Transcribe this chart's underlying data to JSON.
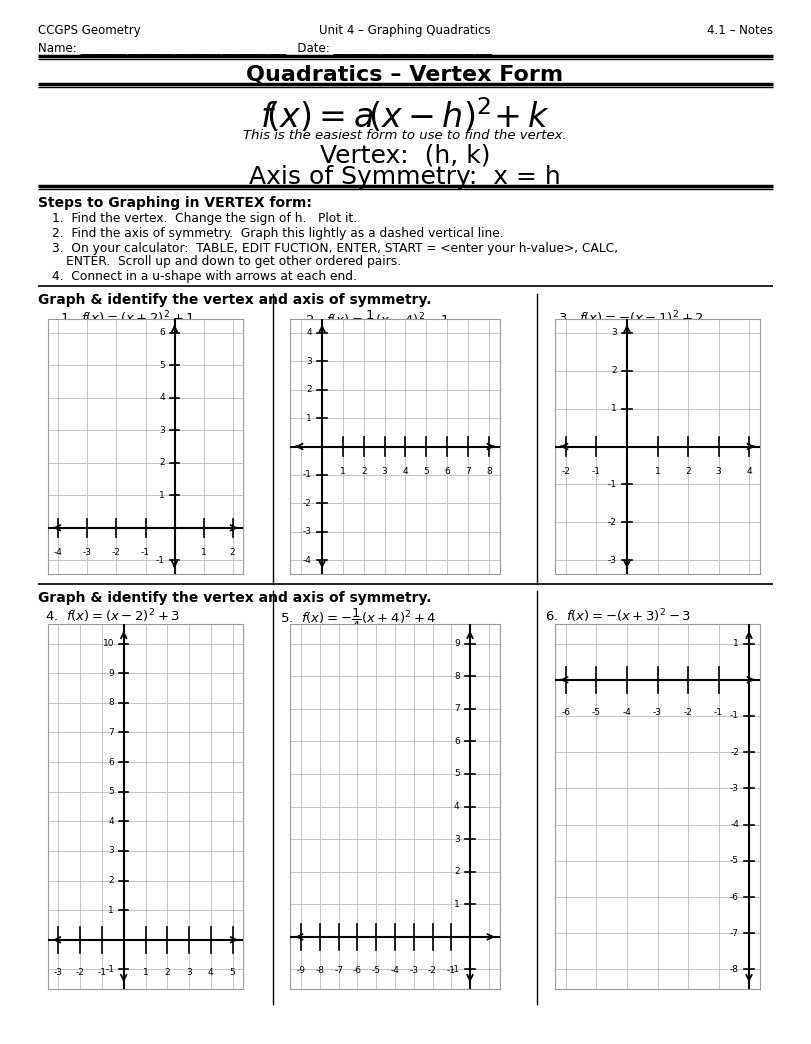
{
  "page_title": "Quadratics – Vertex Form",
  "header_left": "CCGPS Geometry",
  "header_center": "Unit 4 – Graphing Quadratics",
  "header_right": "4.1 – Notes",
  "subtitle_italic": "This is the easiest form to use to find the vertex.",
  "vertex_text": "Vertex:  (h, k)",
  "axis_sym_text": "Axis of Symmetry:  x = h",
  "steps_title": "Steps to Graphing in VERTEX form:",
  "step1": "Find the vertex.  Change the sign of h.   Plot it.",
  "step2": "Find the axis of symmetry.  Graph this lightly as a dashed vertical line.",
  "step3a": "On your calculator:  TABLE, EDIT FUCTION, ENTER, START = <enter your h-value>, CALC,",
  "step3b": "ENTER.  Scroll up and down to get other ordered pairs.",
  "step4": "Connect in a u-shape with arrows at each end.",
  "section_title": "Graph & identify the vertex and axis of symmetry.",
  "p1_label": "1.  $f(x)=(x+2)^{2}+1$",
  "p2_label": "2.  $f(x)=\\dfrac{1}{2}(x-4)^{2}-1$",
  "p3_label": "3.  $f(x)=-(x-1)^{2}+2$",
  "p4_label": "4.  $f(x)=(x-2)^{2}+3$",
  "p5_label": "5.  $f(x)=-\\dfrac{1}{4}(x+4)^{2}+4$",
  "p6_label": "6.  $f(x)=-(x+3)^{2}-3$",
  "bg_color": "#ffffff",
  "grid_color": "#bbbbbb",
  "axis_color": "#000000"
}
